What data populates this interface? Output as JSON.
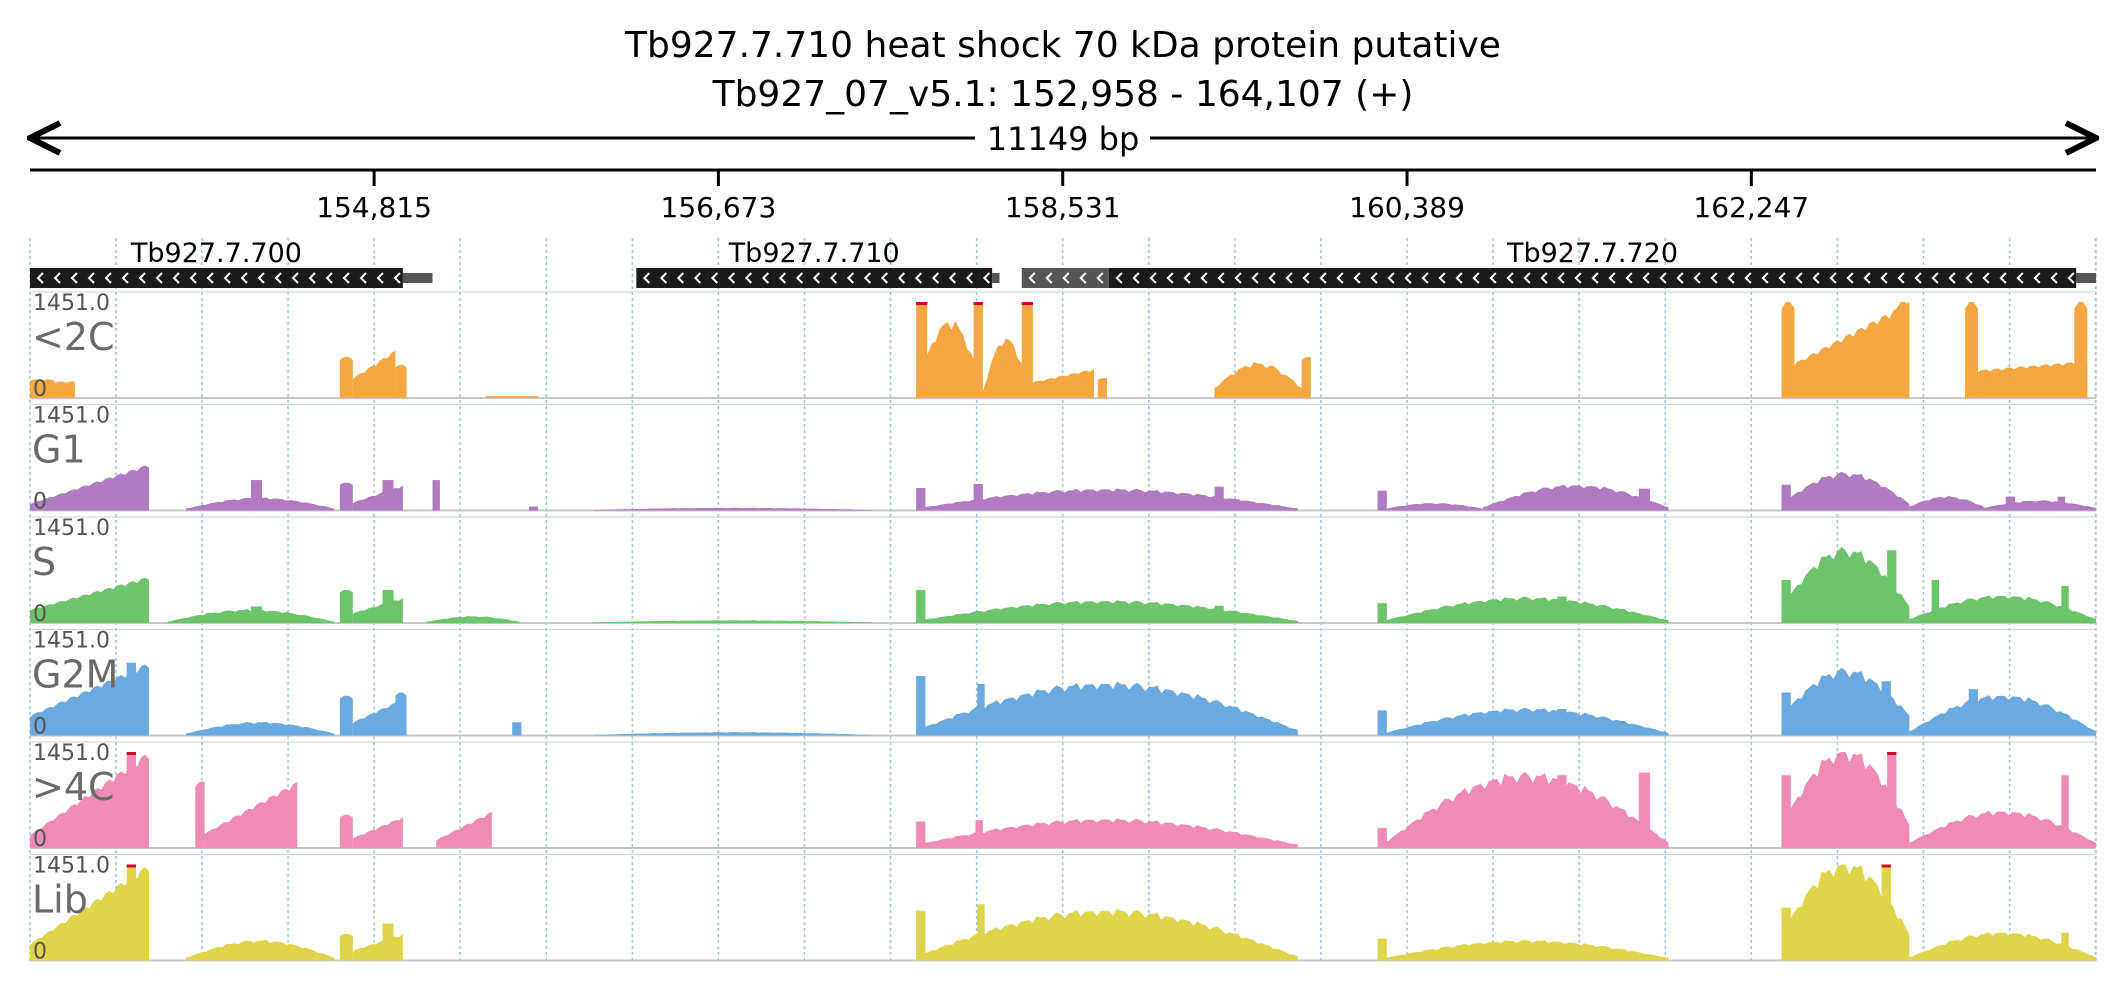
{
  "header": {
    "title": "Tb927.7.710  heat shock 70 kDa protein  putative",
    "location": "Tb927_07_v5.1: 152,958 - 164,107 (+)",
    "span_label": "11149 bp"
  },
  "chart_data": {
    "type": "area",
    "region": {
      "chrom": "Tb927_07_v5.1",
      "start": 152958,
      "end": 164107,
      "strand": "+",
      "length_bp": 11149
    },
    "ruler_ticks": [
      {
        "pos": 154815,
        "label": "154,815"
      },
      {
        "pos": 156673,
        "label": "156,673"
      },
      {
        "pos": 158531,
        "label": "158,531"
      },
      {
        "pos": 160389,
        "label": "160,389"
      },
      {
        "pos": 162247,
        "label": "162,247"
      }
    ],
    "genes": [
      {
        "name": "Tb927.7.700",
        "start": 152958,
        "end": 154970,
        "utr_end": 155130,
        "strand": "-"
      },
      {
        "name": "Tb927.7.710",
        "start": 156230,
        "end": 158150,
        "utr_end": 158190,
        "strand": "-"
      },
      {
        "name": "",
        "start": 158310,
        "end": 158780,
        "strand": "-",
        "color": "#555555"
      },
      {
        "name": "Tb927.7.720",
        "start": 158780,
        "end": 164000,
        "utr_end": 164107,
        "strand": "-"
      }
    ],
    "ymax": 1451,
    "ymax_label": "1451.0",
    "ymin_label": "0",
    "tracks": [
      {
        "name": "<2C",
        "color": "#f5a742",
        "blocks": [
          [
            152958,
            153090,
            280,
            280
          ],
          [
            153090,
            153200,
            250,
            250
          ],
          [
            154630,
            154700,
            620,
            620
          ],
          [
            154700,
            154930,
            300,
            720
          ],
          [
            154930,
            154990,
            500,
            500
          ],
          [
            155420,
            155700,
            30,
            30
          ],
          [
            158300,
            158700,
            200,
            440
          ],
          [
            158720,
            158770,
            300,
            300
          ],
          [
            159820,
            159870,
            620,
            620
          ],
          [
            162410,
            163100,
            420,
            1451
          ],
          [
            162410,
            162480,
            1451,
            1451
          ],
          [
            163030,
            163100,
            1451,
            1451
          ],
          [
            163400,
            163470,
            1451,
            1451
          ],
          [
            163470,
            164060,
            420,
            560
          ],
          [
            163990,
            164060,
            1451,
            1451
          ]
        ],
        "humps": [
          [
            157740,
            158100,
            150,
            1150
          ],
          [
            158100,
            158350,
            100,
            900
          ],
          [
            159350,
            159820,
            150,
            520
          ]
        ],
        "bars": [
          [
            157740,
            157800,
            1451
          ],
          [
            158050,
            158100,
            1451
          ],
          [
            158310,
            158370,
            1451
          ]
        ]
      },
      {
        "name": "G1",
        "color": "#b07bc0",
        "blocks": [
          [
            152958,
            153600,
            100,
            700
          ],
          [
            154630,
            154700,
            420,
            420
          ],
          [
            154700,
            154970,
            120,
            380
          ],
          [
            155650,
            155700,
            60,
            60
          ]
        ],
        "humps": [
          [
            153800,
            154600,
            30,
            190
          ],
          [
            156000,
            157500,
            10,
            40
          ],
          [
            157740,
            159800,
            30,
            320
          ],
          [
            160270,
            160800,
            30,
            110
          ],
          [
            160800,
            161800,
            50,
            380
          ],
          [
            162410,
            163100,
            100,
            560
          ],
          [
            163100,
            163500,
            60,
            210
          ],
          [
            163500,
            164107,
            40,
            150
          ]
        ],
        "bars": [
          [
            154150,
            154210,
            460
          ],
          [
            154860,
            154920,
            460
          ],
          [
            155130,
            155170,
            460
          ],
          [
            157740,
            157790,
            340
          ],
          [
            158050,
            158100,
            400
          ],
          [
            159350,
            159400,
            360
          ],
          [
            160230,
            160280,
            300
          ],
          [
            161640,
            161700,
            330
          ],
          [
            162410,
            162460,
            390
          ],
          [
            163620,
            163670,
            210
          ],
          [
            163900,
            163940,
            210
          ]
        ]
      },
      {
        "name": "S",
        "color": "#6cc56a",
        "blocks": [
          [
            152958,
            153600,
            200,
            700
          ],
          [
            154630,
            154700,
            500,
            500
          ],
          [
            154700,
            154970,
            150,
            380
          ]
        ],
        "humps": [
          [
            153700,
            154600,
            20,
            200
          ],
          [
            155100,
            155600,
            20,
            100
          ],
          [
            156000,
            157500,
            10,
            40
          ],
          [
            157740,
            159800,
            30,
            330
          ],
          [
            160270,
            161800,
            40,
            380
          ],
          [
            162410,
            163100,
            250,
            1100
          ],
          [
            163100,
            164107,
            60,
            410
          ]
        ],
        "bars": [
          [
            154150,
            154210,
            250
          ],
          [
            154860,
            154920,
            500
          ],
          [
            157740,
            157790,
            500
          ],
          [
            159350,
            159400,
            260
          ],
          [
            160230,
            160280,
            300
          ],
          [
            161200,
            161250,
            400
          ],
          [
            162410,
            162460,
            650
          ],
          [
            162980,
            163030,
            1100
          ],
          [
            163220,
            163260,
            650
          ],
          [
            163920,
            163960,
            560
          ]
        ]
      },
      {
        "name": "G2M",
        "color": "#6aaae0",
        "blocks": [
          [
            152958,
            153600,
            300,
            1100
          ],
          [
            154630,
            154700,
            600,
            600
          ],
          [
            154700,
            154970,
            200,
            550
          ],
          [
            154930,
            154990,
            650,
            650
          ]
        ],
        "humps": [
          [
            153800,
            154600,
            30,
            200
          ],
          [
            156000,
            157500,
            10,
            50
          ],
          [
            157740,
            159800,
            80,
            780
          ],
          [
            160270,
            161800,
            40,
            400
          ],
          [
            162410,
            163100,
            300,
            980
          ],
          [
            163100,
            164107,
            60,
            600
          ]
        ],
        "bars": [
          [
            153480,
            153530,
            1100
          ],
          [
            155560,
            155610,
            200
          ],
          [
            157740,
            157790,
            900
          ],
          [
            158070,
            158110,
            780
          ],
          [
            158400,
            158450,
            650
          ],
          [
            159350,
            159400,
            380
          ],
          [
            160230,
            160280,
            380
          ],
          [
            161200,
            161250,
            400
          ],
          [
            162410,
            162460,
            650
          ],
          [
            162950,
            163000,
            820
          ],
          [
            163420,
            163470,
            700
          ]
        ]
      },
      {
        "name": ">4C",
        "color": "#f08bb6",
        "blocks": [
          [
            152958,
            153600,
            200,
            1451
          ],
          [
            153850,
            153900,
            1000,
            1000
          ],
          [
            153900,
            154400,
            220,
            1000
          ],
          [
            154630,
            154700,
            500,
            500
          ],
          [
            154700,
            154970,
            150,
            470
          ],
          [
            155150,
            155450,
            120,
            550
          ]
        ],
        "humps": [
          [
            157740,
            159800,
            50,
            430
          ],
          [
            160270,
            161800,
            80,
            1100
          ],
          [
            162410,
            163100,
            350,
            1451
          ],
          [
            163100,
            164107,
            80,
            550
          ]
        ],
        "bars": [
          [
            153480,
            153530,
            1451
          ],
          [
            157740,
            157790,
            400
          ],
          [
            158060,
            158100,
            420
          ],
          [
            159350,
            159400,
            260
          ],
          [
            160230,
            160280,
            300
          ],
          [
            161200,
            161250,
            1100
          ],
          [
            161640,
            161700,
            1140
          ],
          [
            162410,
            162460,
            1100
          ],
          [
            162980,
            163030,
            1451
          ],
          [
            163920,
            163960,
            1100
          ]
        ]
      },
      {
        "name": "Lib",
        "color": "#e0d448",
        "blocks": [
          [
            152958,
            153600,
            250,
            1451
          ],
          [
            154630,
            154700,
            400,
            400
          ],
          [
            154700,
            154970,
            150,
            400
          ]
        ],
        "humps": [
          [
            153800,
            154600,
            40,
            300
          ],
          [
            157740,
            159800,
            60,
            750
          ],
          [
            160270,
            161800,
            40,
            300
          ],
          [
            162410,
            163100,
            400,
            1451
          ],
          [
            163100,
            164107,
            50,
            420
          ]
        ],
        "bars": [
          [
            153480,
            153530,
            1451
          ],
          [
            154860,
            154920,
            560
          ],
          [
            157740,
            157790,
            750
          ],
          [
            158070,
            158110,
            850
          ],
          [
            158400,
            158450,
            480
          ],
          [
            159350,
            159400,
            380
          ],
          [
            160230,
            160280,
            330
          ],
          [
            162410,
            162460,
            800
          ],
          [
            162950,
            163000,
            1451
          ],
          [
            163920,
            163960,
            420
          ]
        ]
      }
    ]
  }
}
